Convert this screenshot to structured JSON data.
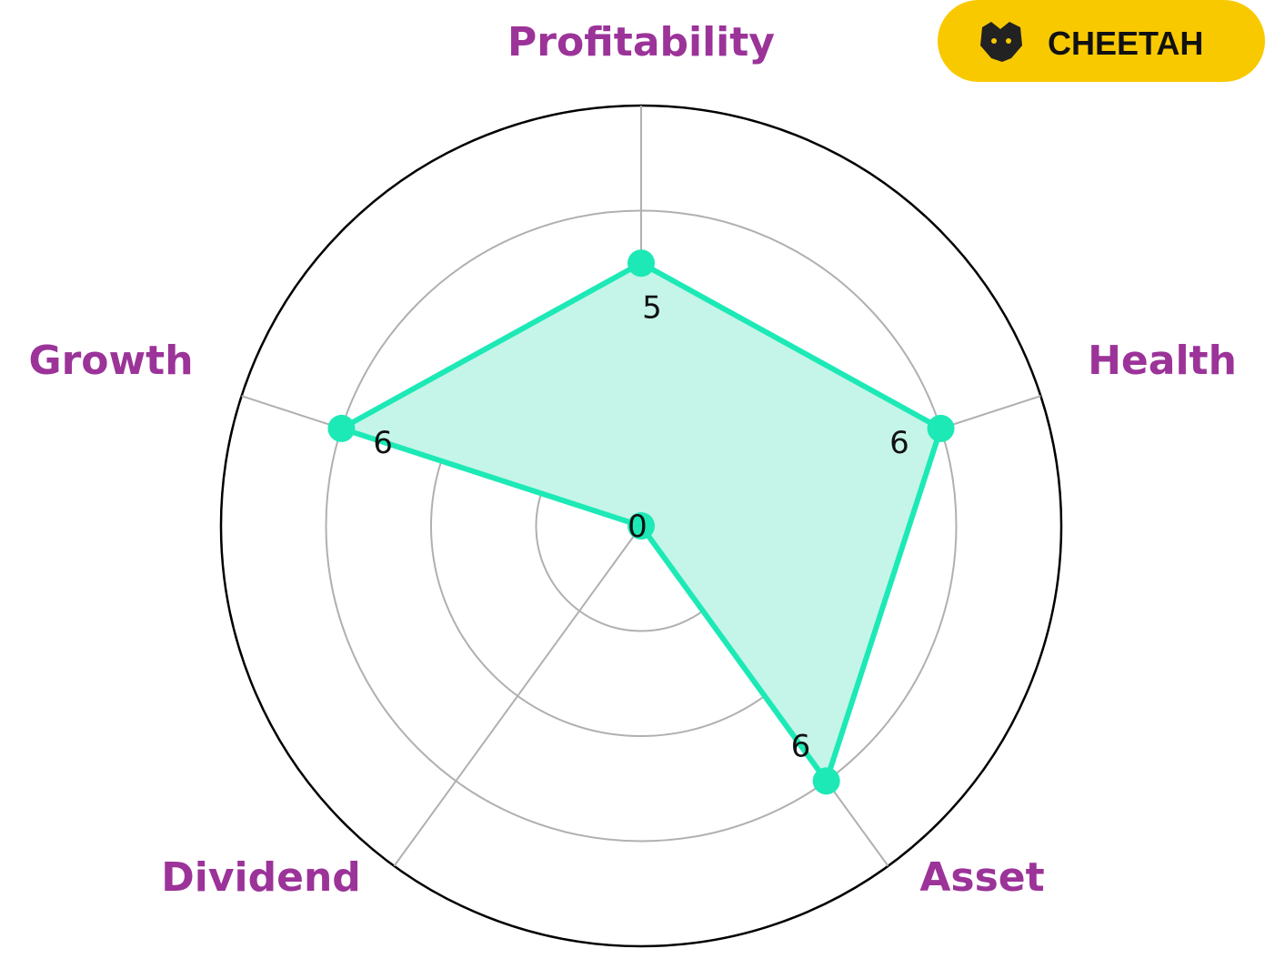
{
  "brand": "CHEETAH",
  "chart_data": {
    "type": "radar",
    "categories": [
      "Profitability",
      "Health",
      "Asset",
      "Dividend",
      "Growth"
    ],
    "values": [
      5,
      6,
      6,
      0,
      6
    ],
    "color": "#1de9b6",
    "fill": "#c5f5e8",
    "rlim": [
      0,
      8
    ],
    "rticks": [
      2,
      4,
      6,
      8
    ],
    "grid": true
  }
}
